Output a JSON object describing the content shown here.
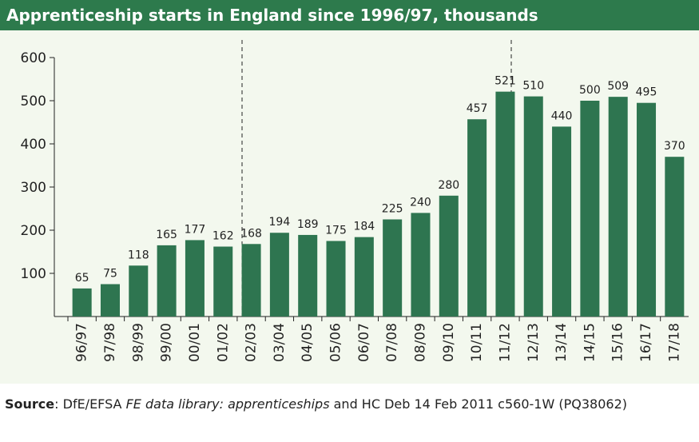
{
  "chart_data": {
    "type": "bar",
    "title": "Apprenticeship starts in England since 1996/97, thousands",
    "categories": [
      "96/97",
      "97/98",
      "98/99",
      "99/00",
      "00/01",
      "01/02",
      "02/03",
      "03/04",
      "04/05",
      "05/06",
      "06/07",
      "07/08",
      "08/09",
      "09/10",
      "10/11",
      "11/12",
      "12/13",
      "13/14",
      "14/15",
      "15/16",
      "16/17",
      "17/18"
    ],
    "values": [
      65,
      75,
      118,
      165,
      177,
      162,
      168,
      194,
      189,
      175,
      184,
      225,
      240,
      280,
      457,
      521,
      510,
      440,
      500,
      509,
      495,
      370
    ],
    "color": "#2e7550",
    "ylim": [
      0,
      600
    ],
    "yticks": [
      100,
      200,
      300,
      400,
      500,
      600
    ],
    "grid": false,
    "source": [
      "Source",
      ": DfE/EFSA ",
      "FE data library: apprenticeships",
      " and HC Deb 14 Feb 2011 c560-1W (PQ38062)"
    ]
  }
}
